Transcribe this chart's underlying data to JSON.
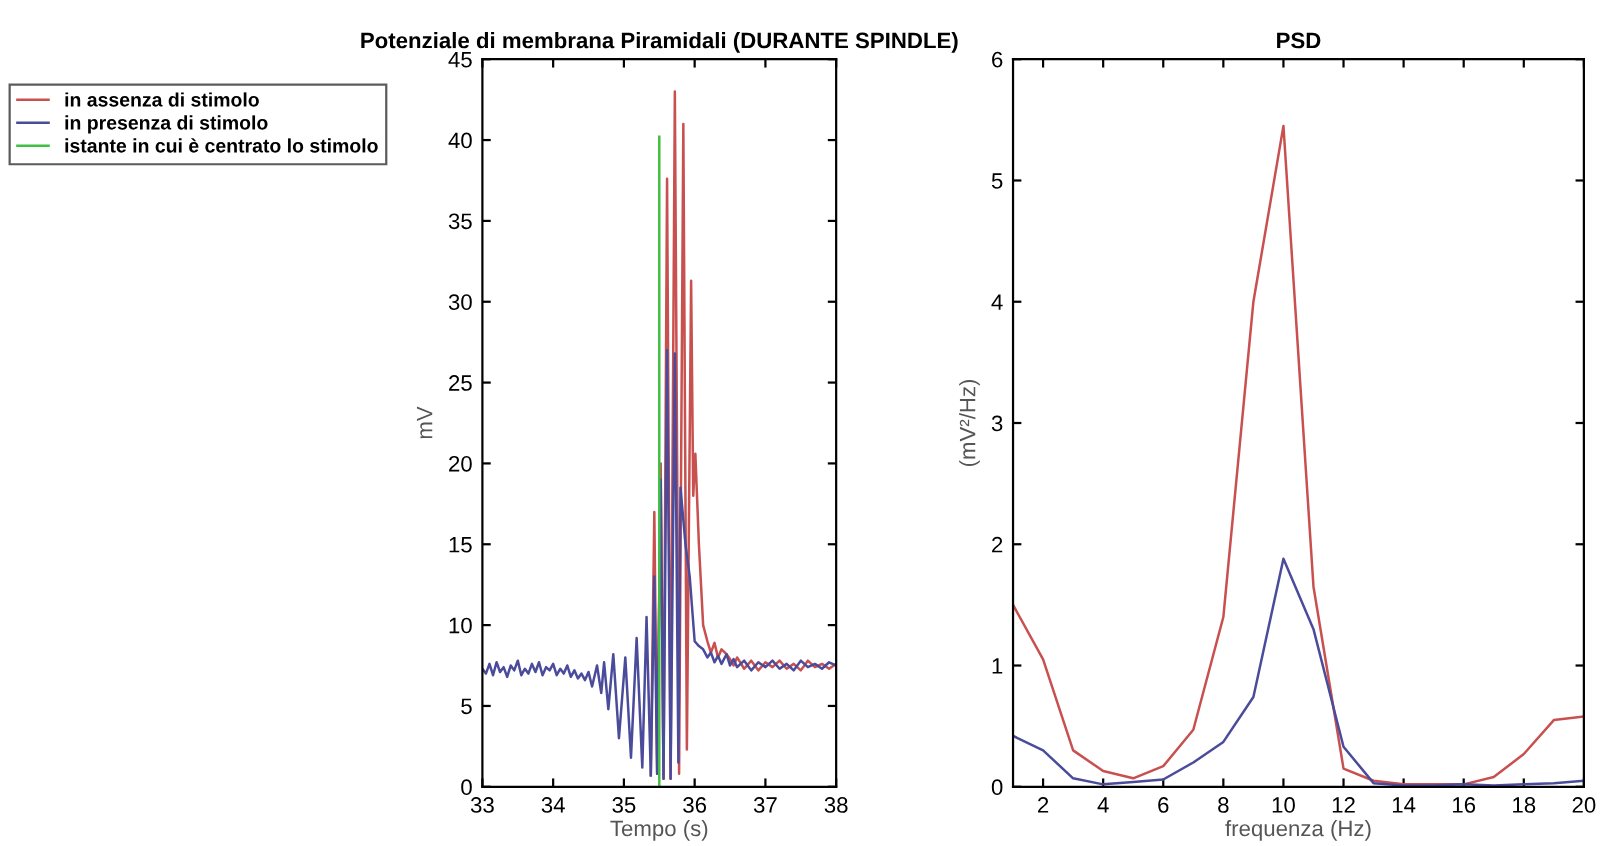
{
  "chart_data": [
    {
      "type": "line",
      "title": "Potenziale di membrana Piramidali (DURANTE SPINDLE)",
      "xlabel": "Tempo (s)",
      "ylabel": "mV",
      "xlim": [
        33,
        38
      ],
      "xticks": [
        33,
        34,
        35,
        36,
        37,
        38
      ],
      "ylim": [
        0,
        45
      ],
      "yticks": [
        0,
        5,
        10,
        15,
        20,
        25,
        30,
        35,
        40,
        45
      ],
      "grid": false,
      "legend": "top left",
      "series": [
        {
          "name": "in assenza di stimolo",
          "color": "#c8504f",
          "x": [
            35.38,
            35.43,
            35.47,
            35.52,
            35.56,
            35.61,
            35.66,
            35.72,
            35.78,
            35.84,
            35.89,
            35.95,
            35.98,
            36.01,
            36.06,
            36.12,
            36.18,
            36.23,
            36.28,
            36.33,
            36.38,
            36.45,
            36.5,
            36.55,
            36.6,
            36.7,
            36.8,
            36.9,
            37,
            37.1,
            37.2,
            37.3,
            37.4,
            37.5,
            37.6,
            37.7,
            37.8,
            37.9,
            38
          ],
          "values": [
            0.7,
            17,
            0.8,
            20,
            0.5,
            37.6,
            0.5,
            43,
            0.8,
            41,
            2.3,
            31.3,
            18,
            20.6,
            15,
            10,
            9,
            8.3,
            8.9,
            8.0,
            8.5,
            8.2,
            7.9,
            7.5,
            8.0,
            7.3,
            7.8,
            7.2,
            7.7,
            7.4,
            7.8,
            7.3,
            7.6,
            7.2,
            7.8,
            7.4,
            7.6,
            7.3,
            7.6
          ]
        },
        {
          "name": "in presenza di stimolo",
          "color": "#4b4b9c",
          "x": [
            33,
            33.05,
            33.1,
            33.15,
            33.2,
            33.25,
            33.3,
            33.35,
            33.4,
            33.45,
            33.5,
            33.55,
            33.6,
            33.65,
            33.7,
            33.75,
            33.8,
            33.85,
            33.9,
            33.95,
            34,
            34.05,
            34.1,
            34.15,
            34.2,
            34.25,
            34.3,
            34.35,
            34.4,
            34.45,
            34.5,
            34.55,
            34.62,
            34.68,
            34.72,
            34.78,
            34.85,
            34.93,
            35.02,
            35.1,
            35.18,
            35.26,
            35.32,
            35.38,
            35.43,
            35.47,
            35.52,
            35.56,
            35.61,
            35.66,
            35.72,
            35.77,
            35.8,
            35.87,
            35.93,
            36.0,
            36.06,
            36.12,
            36.18,
            36.23,
            36.28,
            36.33,
            36.38,
            36.45,
            36.5,
            36.55,
            36.6,
            36.7,
            36.8,
            36.9,
            37,
            37.1,
            37.2,
            37.3,
            37.4,
            37.5,
            37.6,
            37.7,
            37.8,
            37.9,
            38
          ],
          "values": [
            7.3,
            7.0,
            7.6,
            6.9,
            7.7,
            7.1,
            7.4,
            6.8,
            7.5,
            7.2,
            7.8,
            6.9,
            7.3,
            7.0,
            7.6,
            7.1,
            7.7,
            6.9,
            7.4,
            7.2,
            7.6,
            6.9,
            7.3,
            7.0,
            7.5,
            6.8,
            7.2,
            6.7,
            7.0,
            6.6,
            7.1,
            6.2,
            7.5,
            5.8,
            7.7,
            4.8,
            8.2,
            3.0,
            8.0,
            1.8,
            9.2,
            1.2,
            10.5,
            0.7,
            13,
            0.8,
            19,
            0.5,
            27,
            0.5,
            26.8,
            1.5,
            18.5,
            15,
            13,
            9,
            8.7,
            8.5,
            8.0,
            8.3,
            7.7,
            8.1,
            7.6,
            8.2,
            7.5,
            7.9,
            7.4,
            7.8,
            7.2,
            7.7,
            7.4,
            7.8,
            7.3,
            7.6,
            7.2,
            7.8,
            7.4,
            7.6,
            7.3,
            7.7,
            7.5
          ]
        },
        {
          "name": "istante in cui è centrato lo stimolo",
          "color": "#40c040",
          "x": [
            35.5,
            35.5
          ],
          "values": [
            0,
            40.2
          ]
        }
      ]
    },
    {
      "type": "line",
      "title": "PSD",
      "xlabel": "frequenza (Hz)",
      "ylabel": "(mV²/Hz)",
      "xlim": [
        1,
        20
      ],
      "xticks": [
        2,
        4,
        6,
        8,
        10,
        12,
        14,
        16,
        18,
        20
      ],
      "ylim": [
        0,
        6
      ],
      "yticks": [
        0,
        1,
        2,
        3,
        4,
        5,
        6
      ],
      "grid": false,
      "legend": false,
      "x": [
        1,
        2,
        3,
        4,
        5,
        6,
        7,
        8,
        9,
        10,
        11,
        12,
        13,
        14,
        15,
        16,
        17,
        18,
        19,
        20
      ],
      "series": [
        {
          "color": "#c8504f",
          "values": [
            1.5,
            1.05,
            0.3,
            0.13,
            0.07,
            0.17,
            0.47,
            1.4,
            4.0,
            5.45,
            1.65,
            0.15,
            0.05,
            0.02,
            0.02,
            0.02,
            0.08,
            0.27,
            0.55,
            0.58
          ]
        },
        {
          "color": "#4b4b9c",
          "values": [
            0.42,
            0.3,
            0.07,
            0.02,
            0.04,
            0.06,
            0.2,
            0.37,
            0.74,
            1.88,
            1.3,
            0.33,
            0.03,
            0.01,
            0.01,
            0.02,
            0.01,
            0.02,
            0.03,
            0.05
          ]
        }
      ]
    }
  ]
}
